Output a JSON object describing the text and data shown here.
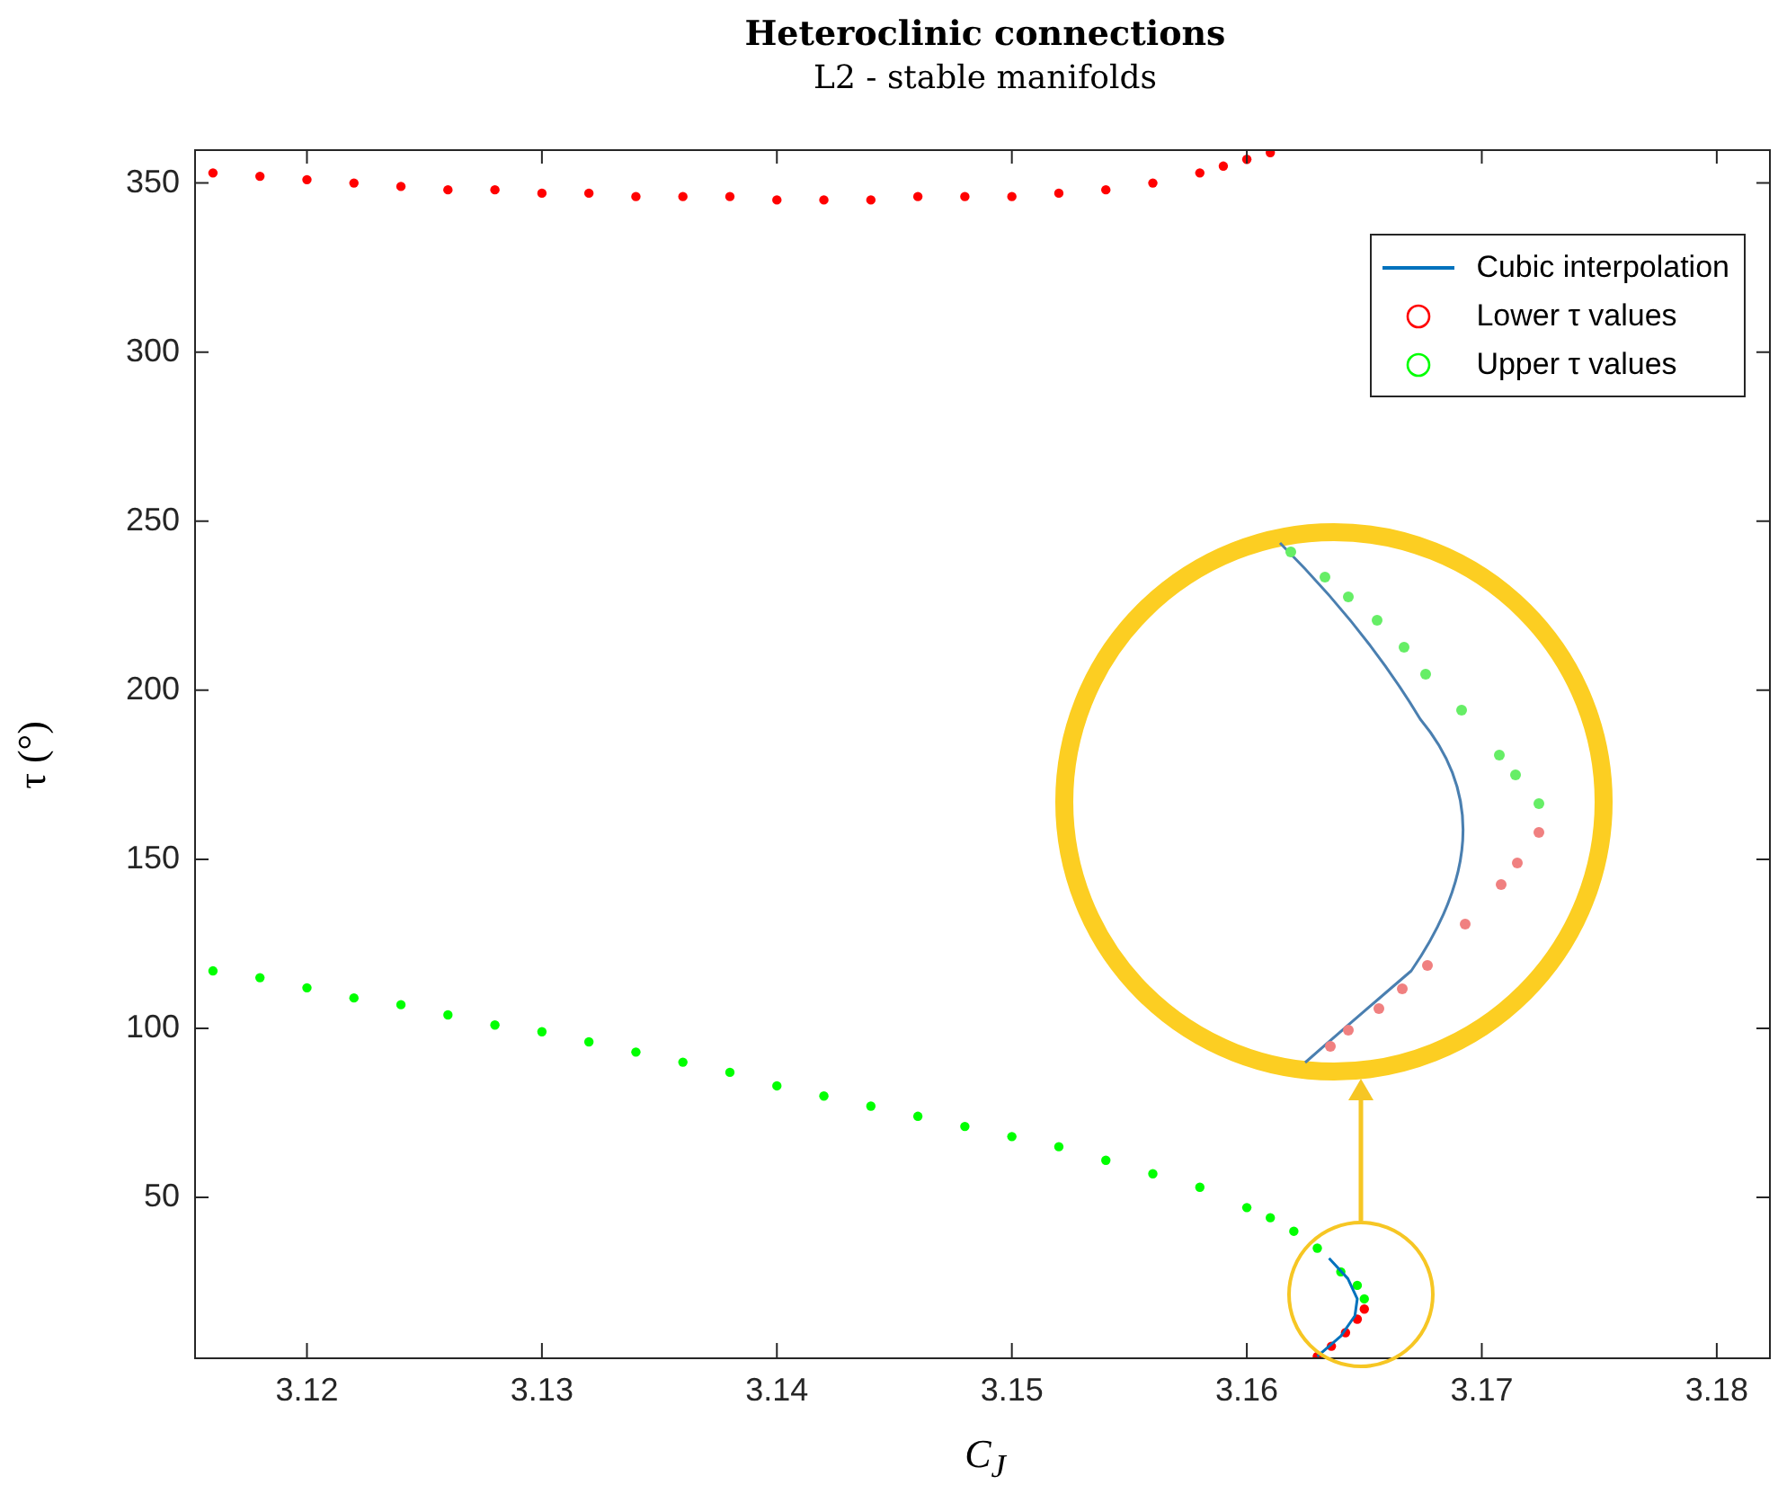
{
  "chart_data": {
    "type": "scatter",
    "title": "Heteroclinic connections",
    "subtitle": "L2 - stable manifolds",
    "xlabel": "C$_{J}$",
    "ylabel": "τ (°)",
    "xlim": [
      3.1152,
      3.1823
    ],
    "ylim": [
      2.7,
      360
    ],
    "xticks": [
      3.12,
      3.13,
      3.14,
      3.15,
      3.16,
      3.17,
      3.18
    ],
    "yticks": [
      50,
      100,
      150,
      200,
      250,
      300,
      350
    ],
    "grid": false,
    "legend": "top right",
    "marker": "circle",
    "series": [
      {
        "name": "Cubic interpolation",
        "type": "line",
        "marker": "none",
        "color": "#0072bd",
        "x": [
          3.163,
          3.164,
          3.1646,
          3.1647,
          3.1643,
          3.1635
        ],
        "values": [
          3,
          9,
          15,
          20,
          26,
          32
        ]
      },
      {
        "name": "Lower τ values",
        "color": "#ff0000",
        "x": [
          3.116,
          3.118,
          3.12,
          3.122,
          3.124,
          3.126,
          3.128,
          3.13,
          3.132,
          3.134,
          3.136,
          3.138,
          3.14,
          3.142,
          3.144,
          3.146,
          3.148,
          3.15,
          3.152,
          3.154,
          3.156,
          3.158,
          3.159,
          3.16,
          3.161,
          3.163,
          3.1636,
          3.1642,
          3.1647,
          3.165
        ],
        "values": [
          353,
          352,
          351,
          350,
          349,
          348,
          348,
          347,
          347,
          346,
          346,
          346,
          345,
          345,
          345,
          346,
          346,
          346,
          347,
          348,
          350,
          353,
          355,
          357,
          359,
          3,
          6,
          10,
          14,
          17
        ]
      },
      {
        "name": "Upper τ values",
        "color": "#00ff00",
        "x": [
          3.116,
          3.118,
          3.12,
          3.122,
          3.124,
          3.126,
          3.128,
          3.13,
          3.132,
          3.134,
          3.136,
          3.138,
          3.14,
          3.142,
          3.144,
          3.146,
          3.148,
          3.15,
          3.152,
          3.154,
          3.156,
          3.158,
          3.16,
          3.161,
          3.162,
          3.163,
          3.164,
          3.1647,
          3.165
        ],
        "values": [
          117,
          115,
          112,
          109,
          107,
          104,
          101,
          99,
          96,
          93,
          90,
          87,
          83,
          80,
          77,
          74,
          71,
          68,
          65,
          61,
          57,
          53,
          47,
          44,
          40,
          35,
          28,
          24,
          20
        ]
      }
    ]
  }
}
